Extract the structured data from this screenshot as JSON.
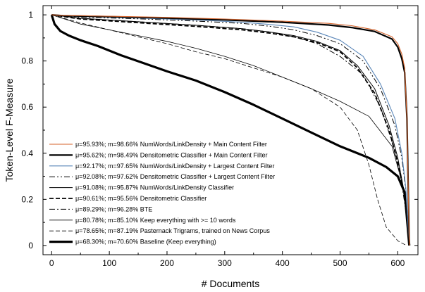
{
  "chart_data": {
    "type": "line",
    "xlabel": "# Documents",
    "ylabel": "Token-Level F-Measure",
    "xlim": [
      -15,
      635
    ],
    "ylim": [
      -0.04,
      1.04
    ],
    "xticks": [
      0,
      100,
      200,
      300,
      400,
      500,
      600
    ],
    "yticks": [
      0,
      0.2,
      0.4,
      0.6,
      0.8,
      1
    ],
    "grid": false,
    "legend_position": "lower-left",
    "series": [
      {
        "name": "μ=95.93%; m=98.66% NumWords/LinkDensity + Main Content Filter",
        "color": "#d4622a",
        "style": "solid",
        "width": 1.1,
        "x": [
          0,
          20,
          100,
          200,
          300,
          400,
          480,
          520,
          560,
          590,
          600,
          607,
          612,
          616,
          620
        ],
        "y": [
          1.0,
          0.998,
          0.994,
          0.989,
          0.982,
          0.973,
          0.963,
          0.953,
          0.935,
          0.905,
          0.875,
          0.83,
          0.77,
          0.55,
          0.0
        ]
      },
      {
        "name": "μ=95.62%; m=98.49% Densitometric Classifier + Main Content Filter",
        "color": "#000000",
        "style": "solid",
        "width": 2.2,
        "x": [
          0,
          20,
          100,
          200,
          300,
          400,
          480,
          520,
          560,
          590,
          600,
          607,
          612,
          616,
          620
        ],
        "y": [
          1.0,
          0.996,
          0.992,
          0.986,
          0.978,
          0.968,
          0.956,
          0.945,
          0.928,
          0.895,
          0.86,
          0.81,
          0.75,
          0.55,
          0.0
        ]
      },
      {
        "name": "μ=92.17%; m=97.65% NumWords/LinkDensity + Largest Content Filter",
        "color": "#5a86b8",
        "style": "solid",
        "width": 1.1,
        "x": [
          0,
          50,
          150,
          250,
          330,
          380,
          420,
          460,
          500,
          540,
          570,
          595,
          607,
          614,
          620
        ],
        "y": [
          1.0,
          0.993,
          0.986,
          0.978,
          0.968,
          0.958,
          0.948,
          0.925,
          0.89,
          0.82,
          0.7,
          0.55,
          0.4,
          0.25,
          0.0
        ]
      },
      {
        "name": "μ=92.08%; m=97.62% Densitometric Classifier + Largest Content Filter",
        "color": "#000000",
        "style": "dashdotdot",
        "width": 1.0,
        "x": [
          0,
          50,
          150,
          250,
          330,
          380,
          420,
          460,
          500,
          540,
          570,
          595,
          607,
          614,
          620
        ],
        "y": [
          1.0,
          0.99,
          0.983,
          0.973,
          0.963,
          0.95,
          0.935,
          0.91,
          0.875,
          0.8,
          0.68,
          0.52,
          0.38,
          0.24,
          0.0
        ]
      },
      {
        "name": "μ=91.08%; m=95.87% NumWords/LinkDensity Classifier",
        "color": "#000000",
        "style": "solid",
        "width": 1.0,
        "x": [
          0,
          50,
          150,
          250,
          330,
          380,
          420,
          460,
          500,
          530,
          560,
          585,
          600,
          612,
          620
        ],
        "y": [
          1.0,
          0.985,
          0.97,
          0.955,
          0.94,
          0.925,
          0.91,
          0.885,
          0.845,
          0.78,
          0.68,
          0.52,
          0.38,
          0.22,
          0.0
        ]
      },
      {
        "name": "μ=90.61%; m=95.56% Densitometric Classifier",
        "color": "#000000",
        "style": "dash",
        "width": 1.8,
        "x": [
          0,
          50,
          150,
          250,
          330,
          380,
          420,
          460,
          500,
          530,
          560,
          585,
          600,
          612,
          620
        ],
        "y": [
          1.0,
          0.982,
          0.966,
          0.95,
          0.935,
          0.92,
          0.905,
          0.88,
          0.84,
          0.77,
          0.66,
          0.5,
          0.36,
          0.21,
          0.0
        ]
      },
      {
        "name": "μ=89.29%; m=96.28% BTE",
        "color": "#000000",
        "style": "dashdot",
        "width": 1.0,
        "x": [
          0,
          50,
          150,
          250,
          330,
          380,
          420,
          460,
          500,
          540,
          570,
          590,
          605,
          614,
          620
        ],
        "y": [
          1.0,
          0.985,
          0.97,
          0.955,
          0.94,
          0.925,
          0.905,
          0.875,
          0.82,
          0.74,
          0.6,
          0.45,
          0.3,
          0.15,
          0.0
        ]
      },
      {
        "name": "μ=80.78%; m=85.10% Keep everything with >= 10 words",
        "color": "#000000",
        "style": "solid",
        "width": 0.8,
        "x": [
          0,
          50,
          100,
          150,
          200,
          250,
          300,
          350,
          400,
          450,
          500,
          550,
          590,
          610,
          620
        ],
        "y": [
          1.0,
          0.96,
          0.935,
          0.91,
          0.885,
          0.855,
          0.82,
          0.78,
          0.73,
          0.68,
          0.625,
          0.56,
          0.43,
          0.25,
          0.0
        ]
      },
      {
        "name": "μ=78.65%; m=87.19% Pasternack Trigrams, trained on News Corpus",
        "color": "#000000",
        "style": "dash",
        "width": 0.8,
        "x": [
          0,
          50,
          100,
          150,
          200,
          250,
          300,
          350,
          400,
          450,
          500,
          530,
          550,
          565,
          580,
          600,
          615
        ],
        "y": [
          1.0,
          0.965,
          0.935,
          0.905,
          0.875,
          0.84,
          0.81,
          0.77,
          0.73,
          0.68,
          0.6,
          0.5,
          0.35,
          0.2,
          0.08,
          0.02,
          0.0
        ]
      },
      {
        "name": "μ=68.30%; m=70.60% Baseline (Keep everything)",
        "color": "#000000",
        "style": "solid",
        "width": 3.2,
        "x": [
          0,
          5,
          15,
          30,
          50,
          80,
          120,
          160,
          200,
          250,
          300,
          350,
          400,
          450,
          500,
          550,
          580,
          600,
          612,
          620
        ],
        "y": [
          1.0,
          0.96,
          0.93,
          0.91,
          0.89,
          0.865,
          0.825,
          0.79,
          0.755,
          0.715,
          0.665,
          0.61,
          0.55,
          0.49,
          0.43,
          0.38,
          0.34,
          0.3,
          0.23,
          0.0
        ]
      }
    ]
  }
}
